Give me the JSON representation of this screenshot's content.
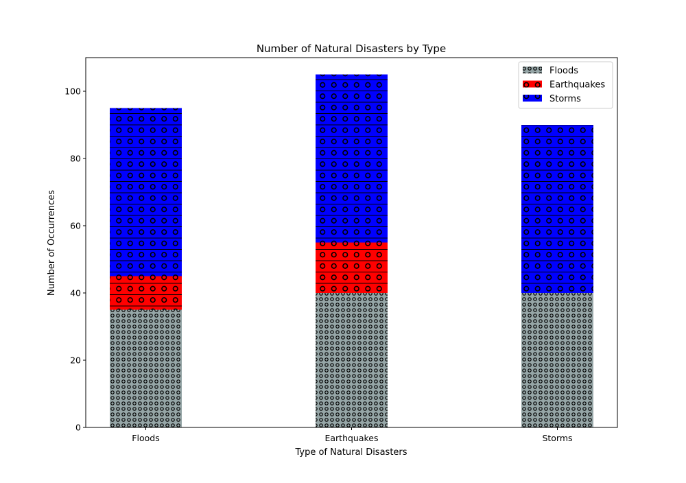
{
  "chart_data": {
    "type": "bar",
    "stacked": true,
    "title": "Number of Natural Disasters by Type",
    "xlabel": "Type of Natural Disasters",
    "ylabel": "Number of Occurrences",
    "categories": [
      "Floods",
      "Earthquakes",
      "Storms"
    ],
    "series": [
      {
        "name": "Floods",
        "values": [
          35,
          40,
          40
        ],
        "color": "#95a5a6",
        "hatch": "dots"
      },
      {
        "name": "Earthquakes",
        "values": [
          10,
          15,
          0
        ],
        "color": "#ff0000",
        "hatch": "lines-circles"
      },
      {
        "name": "Storms",
        "values": [
          50,
          50,
          50
        ],
        "color": "#0000ff",
        "hatch": "lines-circles"
      }
    ],
    "ylim": [
      0,
      110
    ],
    "yticks": [
      0,
      20,
      40,
      60,
      80,
      100
    ],
    "grid": false,
    "legend_position": "top-right"
  }
}
